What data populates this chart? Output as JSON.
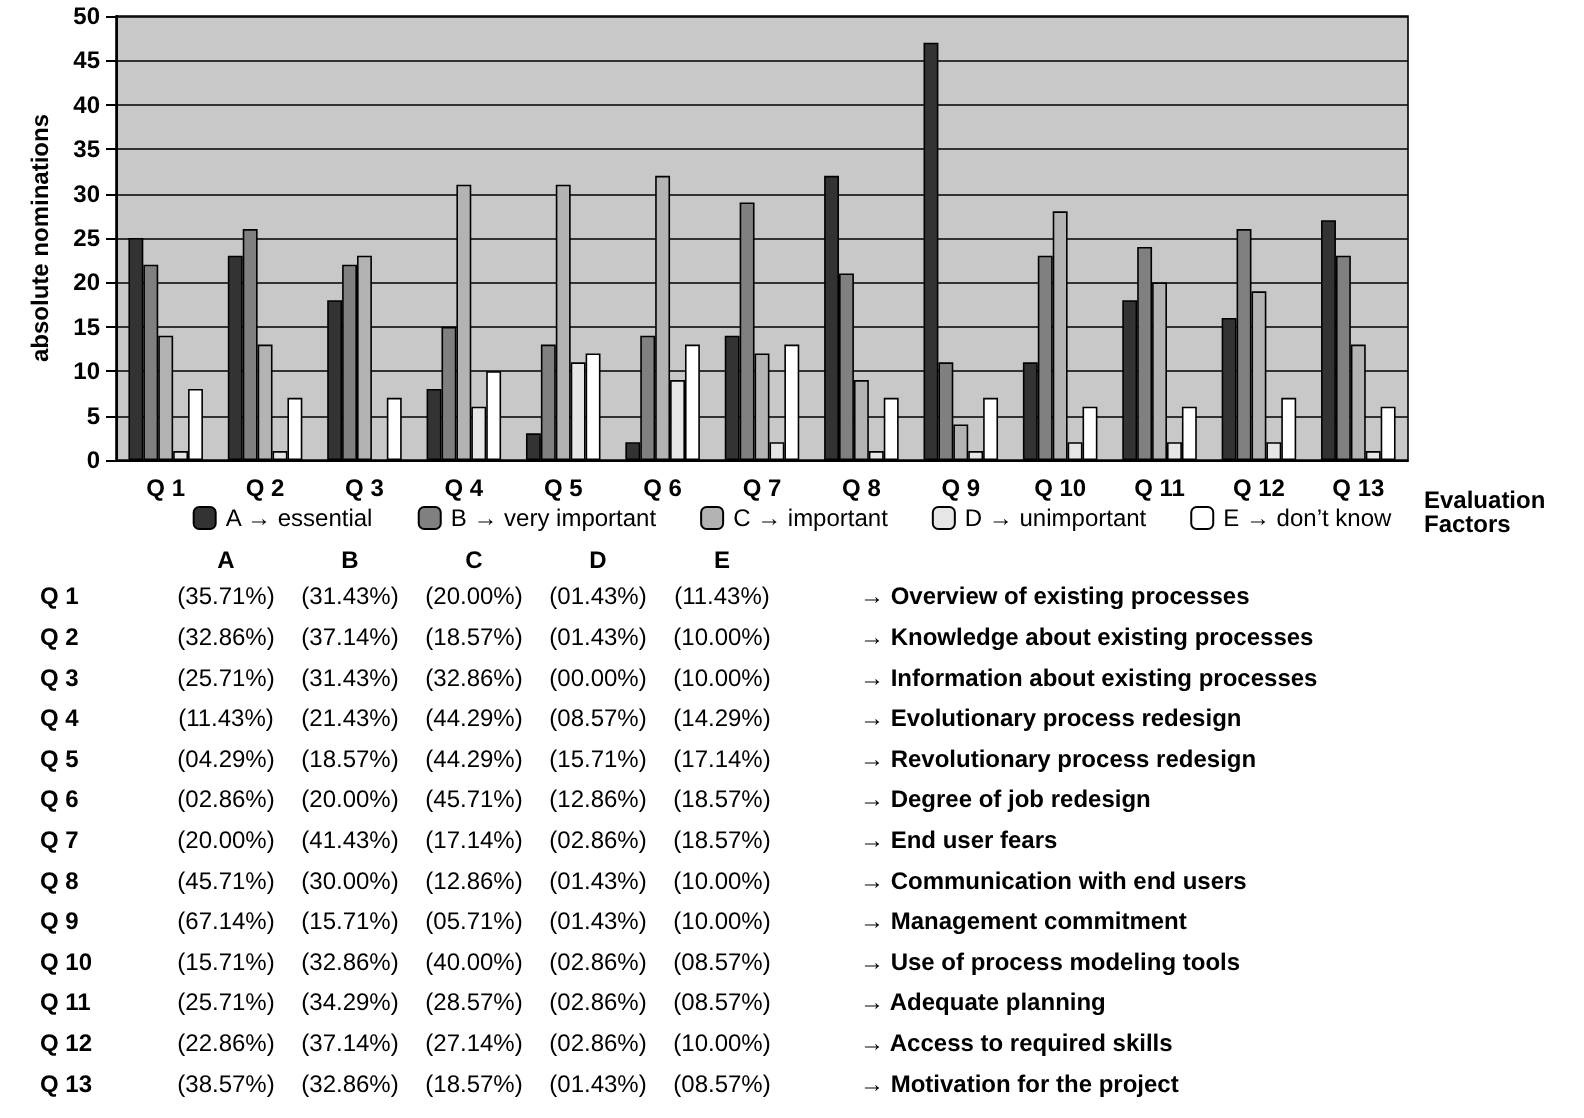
{
  "chart_data": [
    {
      "type": "bar",
      "xlabel": "Evaluation Factors",
      "ylabel": "absolute nominations",
      "categories": [
        "Q 1",
        "Q 2",
        "Q 3",
        "Q 4",
        "Q 5",
        "Q 6",
        "Q 7",
        "Q 8",
        "Q 9",
        "Q 10",
        "Q 11",
        "Q 12",
        "Q 13"
      ],
      "series": [
        {
          "name": "A → essential",
          "color": "#333333",
          "values": [
            25,
            23,
            18,
            8,
            3,
            2,
            14,
            32,
            47,
            11,
            18,
            16,
            27
          ]
        },
        {
          "name": "B → very important",
          "color": "#808080",
          "values": [
            22,
            26,
            22,
            15,
            13,
            14,
            29,
            21,
            11,
            23,
            24,
            26,
            23
          ]
        },
        {
          "name": "C → important",
          "color": "#b3b3b3",
          "values": [
            14,
            13,
            23,
            31,
            31,
            32,
            12,
            9,
            4,
            28,
            20,
            19,
            13
          ]
        },
        {
          "name": "D → unimportant",
          "color": "#e6e6e6",
          "values": [
            1,
            1,
            0,
            6,
            11,
            9,
            2,
            1,
            1,
            2,
            2,
            2,
            1
          ]
        },
        {
          "name": "E → don’t know",
          "color": "#ffffff",
          "values": [
            8,
            7,
            7,
            10,
            12,
            13,
            13,
            7,
            7,
            6,
            6,
            7,
            6
          ]
        }
      ],
      "ylim": [
        0,
        50
      ],
      "yticks": [
        0,
        5,
        10,
        15,
        20,
        25,
        30,
        35,
        40,
        45,
        50
      ],
      "grid": "y",
      "legend": "bottom"
    },
    {
      "type": "heatmap",
      "categories": [
        "A",
        "B",
        "C",
        "D",
        "E"
      ],
      "y_categories": [
        "Q 1",
        "Q 2",
        "Q 3",
        "Q 4",
        "Q 5",
        "Q 6",
        "Q 7",
        "Q 8",
        "Q 9",
        "Q 10",
        "Q 11",
        "Q 12",
        "Q 13"
      ],
      "y2_categories": [
        "→ Overview of existing processes",
        "→ Knowledge about existing processes",
        "→ Information about existing processes",
        "→ Evolutionary process redesign",
        "→ Revolutionary process redesign",
        "→ Degree of job redesign",
        "→ End user fears",
        "→ Communication with end users",
        "→ Management commitment",
        "→ Use of process modeling tools",
        "→ Adequate planning",
        "→ Access to required skills",
        "→ Motivation for the project"
      ],
      "cells": [
        [
          35.71,
          31.43,
          20.0,
          1.43,
          11.43
        ],
        [
          32.86,
          37.14,
          18.57,
          1.43,
          10.0
        ],
        [
          25.71,
          31.43,
          32.86,
          0,
          10.0
        ],
        [
          11.43,
          21.43,
          44.29,
          8.57,
          14.29
        ],
        [
          4.29,
          18.57,
          44.29,
          15.71,
          17.14
        ],
        [
          2.86,
          20.0,
          45.71,
          12.86,
          18.57
        ],
        [
          20.0,
          41.43,
          17.14,
          2.86,
          18.57
        ],
        [
          45.71,
          30.0,
          12.86,
          1.43,
          10.0
        ],
        [
          67.14,
          15.71,
          5.71,
          1.43,
          10.0
        ],
        [
          15.71,
          32.86,
          40.0,
          2.86,
          8.57
        ],
        [
          25.71,
          34.29,
          28.57,
          2.86,
          8.57
        ],
        [
          22.86,
          37.14,
          27.14,
          2.86,
          10.0
        ],
        [
          38.57,
          32.86,
          18.57,
          1.43,
          8.57
        ]
      ],
      "cell_labels": [
        [
          "(35.71%)",
          "(31.43%)",
          "(20.00%)",
          "(01.43%)",
          "(11.43%)"
        ],
        [
          "(32.86%)",
          "(37.14%)",
          "(18.57%)",
          "(01.43%)",
          "(10.00%)"
        ],
        [
          "(25.71%)",
          "(31.43%)",
          "(32.86%)",
          "(00.00%)",
          "(10.00%)"
        ],
        [
          "(11.43%)",
          "(21.43%)",
          "(44.29%)",
          "(08.57%)",
          "(14.29%)"
        ],
        [
          "(04.29%)",
          "(18.57%)",
          "(44.29%)",
          "(15.71%)",
          "(17.14%)"
        ],
        [
          "(02.86%)",
          "(20.00%)",
          "(45.71%)",
          "(12.86%)",
          "(18.57%)"
        ],
        [
          "(20.00%)",
          "(41.43%)",
          "(17.14%)",
          "(02.86%)",
          "(18.57%)"
        ],
        [
          "(45.71%)",
          "(30.00%)",
          "(12.86%)",
          "(01.43%)",
          "(10.00%)"
        ],
        [
          "(67.14%)",
          "(15.71%)",
          "(05.71%)",
          "(01.43%)",
          "(10.00%)"
        ],
        [
          "(15.71%)",
          "(32.86%)",
          "(40.00%)",
          "(02.86%)",
          "(08.57%)"
        ],
        [
          "(25.71%)",
          "(34.29%)",
          "(28.57%)",
          "(02.86%)",
          "(08.57%)"
        ],
        [
          "(22.86%)",
          "(37.14%)",
          "(27.14%)",
          "(02.86%)",
          "(10.00%)"
        ],
        [
          "(38.57%)",
          "(32.86%)",
          "(18.57%)",
          "(01.43%)",
          "(08.57%)"
        ]
      ]
    }
  ]
}
